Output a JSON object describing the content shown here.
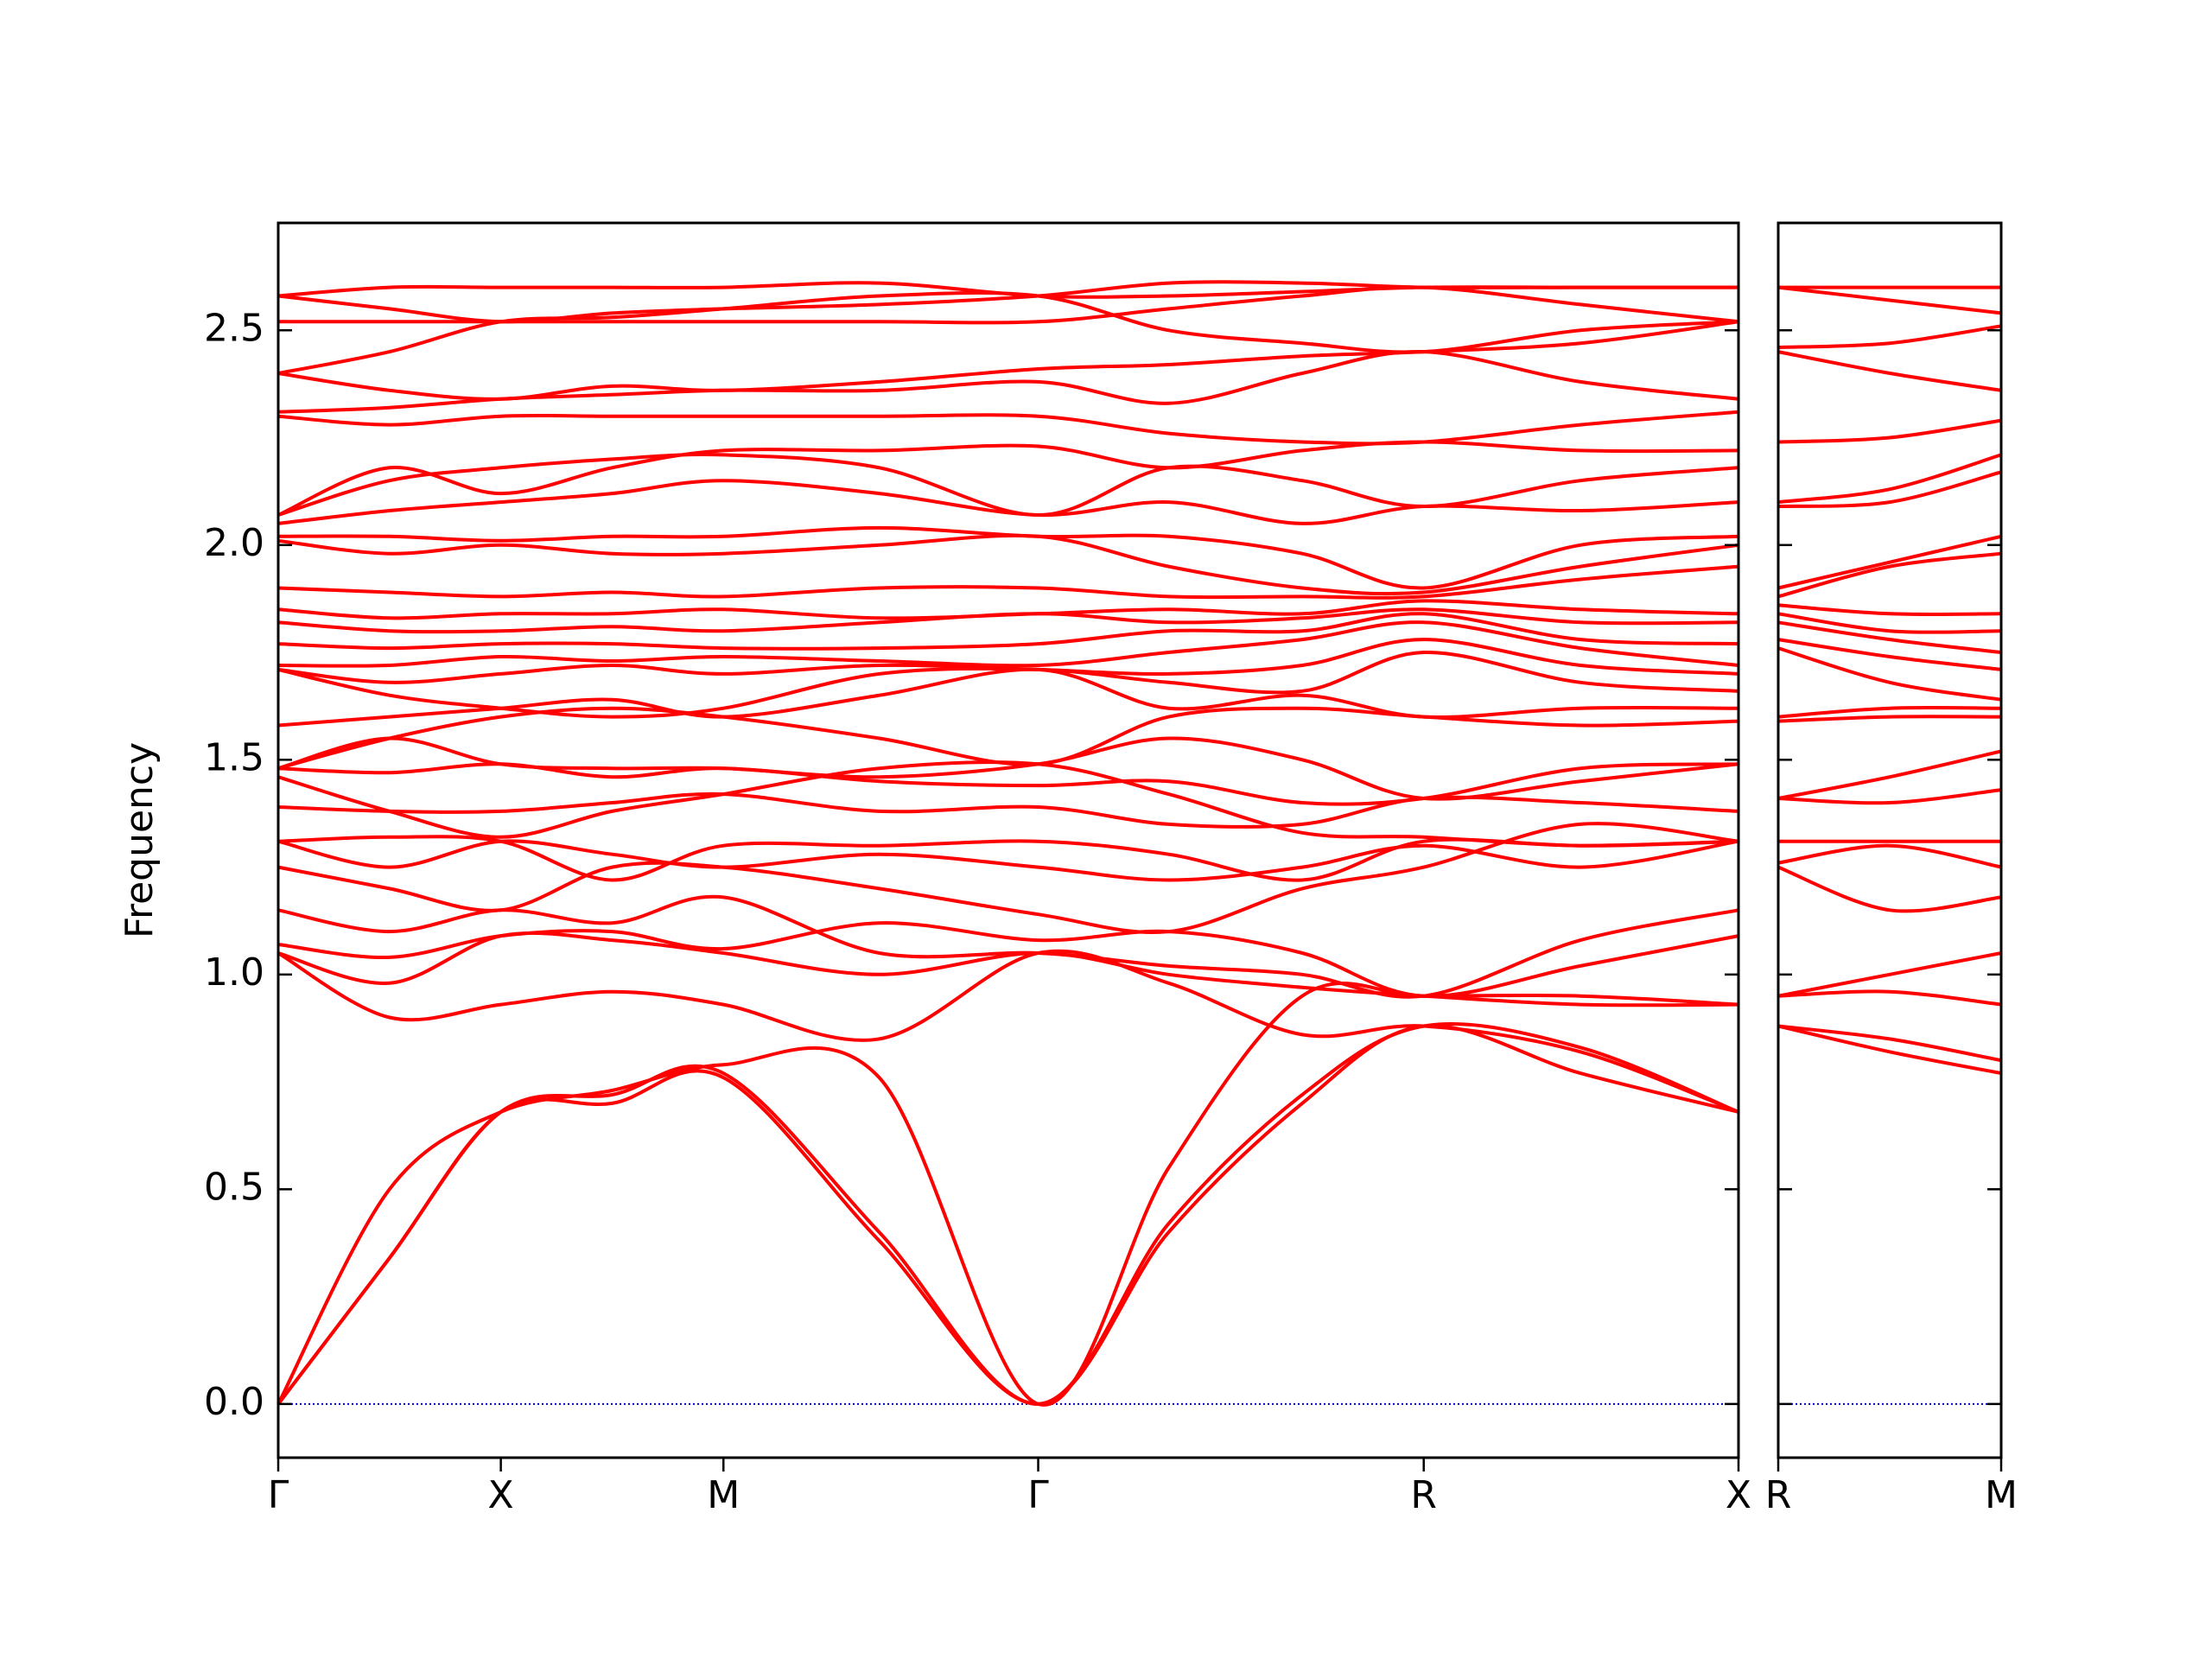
{
  "chart_data": [
    {
      "type": "line",
      "ylabel": "Frequency",
      "color": "#ff0000",
      "hline": 0,
      "hline_color": "#0000cc",
      "xlim": [
        0,
        6.56
      ],
      "ylim": [
        -0.125,
        2.75
      ],
      "xticks": [
        {
          "value": 0,
          "label": "Γ"
        },
        {
          "value": 1,
          "label": "X"
        },
        {
          "value": 2,
          "label": "M"
        },
        {
          "value": 3.414,
          "label": "Γ"
        },
        {
          "value": 5.146,
          "label": "R"
        },
        {
          "value": 6.56,
          "label": "X"
        }
      ],
      "yticks": [
        {
          "value": 0,
          "label": "0.0"
        },
        0.5,
        {
          "value": 1,
          "label": "1.0"
        },
        1.5,
        {
          "value": 2,
          "label": "2.0"
        },
        2.5
      ],
      "x": [
        0,
        0.5,
        1,
        1.5,
        2,
        2.7,
        3.414,
        4.0,
        4.6,
        5.146,
        5.85,
        6.56
      ],
      "series": [
        {
          "values": [
            0,
            0.34,
            0.68,
            0.7,
            0.76,
            0.38,
            0,
            0.4,
            0.7,
            0.88,
            0.77,
            0.68
          ]
        },
        {
          "values": [
            0,
            0.34,
            0.68,
            0.72,
            0.77,
            0.4,
            0,
            0.42,
            0.72,
            0.88,
            0.83,
            0.68
          ]
        },
        {
          "values": [
            0,
            0.5,
            0.68,
            0.73,
            0.79,
            0.76,
            0,
            0.55,
            0.95,
            0.95,
            0.95,
            0.93
          ]
        },
        {
          "values": [
            1.05,
            0.9,
            0.93,
            0.96,
            0.93,
            0.85,
            1.05,
            0.98,
            0.86,
            0.88,
            0.82,
            0.68
          ]
        },
        {
          "values": [
            1.05,
            0.98,
            1.09,
            1.08,
            1.05,
            1.0,
            1.05,
            1.0,
            0.97,
            0.95,
            0.93,
            0.93
          ]
        },
        {
          "values": [
            1.07,
            1.04,
            1.09,
            1.1,
            1.06,
            1.12,
            1.08,
            1.1,
            1.05,
            0.95,
            1.02,
            1.09
          ]
        },
        {
          "values": [
            1.15,
            1.1,
            1.15,
            1.12,
            1.18,
            1.05,
            1.05,
            1.02,
            1.0,
            0.95,
            1.08,
            1.15
          ]
        },
        {
          "values": [
            1.25,
            1.2,
            1.15,
            1.25,
            1.25,
            1.2,
            1.14,
            1.1,
            1.2,
            1.25,
            1.35,
            1.31
          ]
        },
        {
          "values": [
            1.31,
            1.25,
            1.31,
            1.28,
            1.25,
            1.28,
            1.25,
            1.22,
            1.25,
            1.3,
            1.25,
            1.31
          ]
        },
        {
          "values": [
            1.31,
            1.32,
            1.31,
            1.22,
            1.3,
            1.3,
            1.31,
            1.28,
            1.22,
            1.31,
            1.3,
            1.31
          ]
        },
        {
          "values": [
            1.39,
            1.38,
            1.38,
            1.4,
            1.42,
            1.38,
            1.39,
            1.35,
            1.35,
            1.41,
            1.4,
            1.38
          ]
        },
        {
          "values": [
            1.46,
            1.38,
            1.32,
            1.38,
            1.42,
            1.48,
            1.49,
            1.42,
            1.33,
            1.32,
            1.3,
            1.31
          ]
        },
        {
          "values": [
            1.48,
            1.47,
            1.49,
            1.46,
            1.48,
            1.45,
            1.44,
            1.45,
            1.4,
            1.41,
            1.48,
            1.49
          ]
        },
        {
          "values": [
            1.48,
            1.55,
            1.49,
            1.48,
            1.48,
            1.46,
            1.49,
            1.55,
            1.5,
            1.41,
            1.45,
            1.49
          ]
        },
        {
          "values": [
            1.48,
            1.55,
            1.6,
            1.62,
            1.6,
            1.55,
            1.49,
            1.6,
            1.62,
            1.6,
            1.58,
            1.59
          ]
        },
        {
          "values": [
            1.58,
            1.6,
            1.62,
            1.64,
            1.6,
            1.65,
            1.71,
            1.62,
            1.65,
            1.6,
            1.62,
            1.62
          ]
        },
        {
          "values": [
            1.71,
            1.65,
            1.62,
            1.6,
            1.62,
            1.7,
            1.71,
            1.68,
            1.66,
            1.75,
            1.68,
            1.66
          ]
        },
        {
          "values": [
            1.71,
            1.68,
            1.7,
            1.72,
            1.7,
            1.72,
            1.71,
            1.7,
            1.72,
            1.78,
            1.72,
            1.7
          ]
        },
        {
          "values": [
            1.72,
            1.72,
            1.74,
            1.73,
            1.74,
            1.73,
            1.72,
            1.75,
            1.78,
            1.82,
            1.76,
            1.72
          ]
        },
        {
          "values": [
            1.77,
            1.76,
            1.77,
            1.77,
            1.76,
            1.76,
            1.77,
            1.8,
            1.8,
            1.84,
            1.78,
            1.77
          ]
        },
        {
          "values": [
            1.82,
            1.8,
            1.8,
            1.81,
            1.8,
            1.82,
            1.84,
            1.82,
            1.83,
            1.85,
            1.82,
            1.82
          ]
        },
        {
          "values": [
            1.85,
            1.83,
            1.84,
            1.84,
            1.85,
            1.83,
            1.84,
            1.85,
            1.84,
            1.87,
            1.85,
            1.84
          ]
        },
        {
          "values": [
            1.9,
            1.89,
            1.88,
            1.89,
            1.88,
            1.9,
            1.9,
            1.88,
            1.88,
            1.88,
            1.92,
            1.95
          ]
        },
        {
          "values": [
            2.01,
            1.98,
            2.0,
            1.98,
            1.98,
            2.0,
            2.02,
            1.95,
            1.9,
            1.89,
            1.95,
            2.0
          ]
        },
        {
          "values": [
            2.02,
            2.02,
            2.01,
            2.02,
            2.02,
            2.04,
            2.02,
            2.02,
            1.98,
            1.9,
            2.0,
            2.02
          ]
        },
        {
          "values": [
            2.05,
            2.08,
            2.1,
            2.12,
            2.15,
            2.12,
            2.07,
            2.1,
            2.05,
            2.09,
            2.08,
            2.1
          ]
        },
        {
          "values": [
            2.07,
            2.15,
            2.18,
            2.2,
            2.21,
            2.18,
            2.07,
            2.18,
            2.15,
            2.09,
            2.15,
            2.18
          ]
        },
        {
          "values": [
            2.07,
            2.18,
            2.12,
            2.18,
            2.22,
            2.22,
            2.23,
            2.18,
            2.22,
            2.24,
            2.22,
            2.22
          ]
        },
        {
          "values": [
            2.3,
            2.28,
            2.3,
            2.3,
            2.3,
            2.3,
            2.3,
            2.26,
            2.24,
            2.24,
            2.28,
            2.31
          ]
        },
        {
          "values": [
            2.31,
            2.32,
            2.34,
            2.35,
            2.36,
            2.36,
            2.38,
            2.33,
            2.4,
            2.45,
            2.38,
            2.34
          ]
        },
        {
          "values": [
            2.4,
            2.36,
            2.34,
            2.37,
            2.36,
            2.38,
            2.41,
            2.42,
            2.44,
            2.45,
            2.47,
            2.52
          ]
        },
        {
          "values": [
            2.52,
            2.52,
            2.52,
            2.52,
            2.52,
            2.52,
            2.52,
            2.55,
            2.58,
            2.6,
            2.56,
            2.52
          ]
        },
        {
          "values": [
            2.58,
            2.55,
            2.52,
            2.54,
            2.55,
            2.56,
            2.58,
            2.61,
            2.61,
            2.6,
            2.6,
            2.6
          ]
        },
        {
          "values": [
            2.58,
            2.6,
            2.6,
            2.6,
            2.6,
            2.61,
            2.58,
            2.58,
            2.59,
            2.6,
            2.6,
            2.6
          ]
        },
        {
          "values": [
            2.4,
            2.45,
            2.52,
            2.53,
            2.55,
            2.58,
            2.58,
            2.5,
            2.47,
            2.45,
            2.5,
            2.52
          ]
        }
      ]
    },
    {
      "type": "line",
      "color": "#ff0000",
      "hline": 0,
      "hline_color": "#0000cc",
      "ytick_labels": false,
      "xlim": [
        6.56,
        7.56
      ],
      "ylim": [
        -0.125,
        2.75
      ],
      "xticks": [
        {
          "value": 6.56,
          "label": "R"
        },
        {
          "value": 7.56,
          "label": "M"
        }
      ],
      "yticks": [
        0,
        0.5,
        1,
        1.5,
        2,
        2.5
      ],
      "x": [
        6.56,
        7.06,
        7.56
      ],
      "series": [
        {
          "values": [
            0.88,
            0.82,
            0.77
          ]
        },
        {
          "values": [
            0.88,
            0.85,
            0.8
          ]
        },
        {
          "values": [
            0.95,
            0.96,
            0.93
          ]
        },
        {
          "values": [
            0.95,
            1.0,
            1.05
          ]
        },
        {
          "values": [
            1.25,
            1.15,
            1.18
          ]
        },
        {
          "values": [
            1.26,
            1.3,
            1.25
          ]
        },
        {
          "values": [
            1.31,
            1.31,
            1.31
          ]
        },
        {
          "values": [
            1.41,
            1.4,
            1.43
          ]
        },
        {
          "values": [
            1.41,
            1.46,
            1.52
          ]
        },
        {
          "values": [
            1.59,
            1.6,
            1.6
          ]
        },
        {
          "values": [
            1.6,
            1.62,
            1.62
          ]
        },
        {
          "values": [
            1.76,
            1.68,
            1.64
          ]
        },
        {
          "values": [
            1.78,
            1.74,
            1.71
          ]
        },
        {
          "values": [
            1.82,
            1.78,
            1.75
          ]
        },
        {
          "values": [
            1.84,
            1.8,
            1.8
          ]
        },
        {
          "values": [
            1.86,
            1.84,
            1.84
          ]
        },
        {
          "values": [
            1.88,
            1.95,
            1.98
          ]
        },
        {
          "values": [
            1.9,
            1.96,
            2.02
          ]
        },
        {
          "values": [
            2.09,
            2.1,
            2.17
          ]
        },
        {
          "values": [
            2.1,
            2.13,
            2.21
          ]
        },
        {
          "values": [
            2.24,
            2.25,
            2.29
          ]
        },
        {
          "values": [
            2.45,
            2.4,
            2.36
          ]
        },
        {
          "values": [
            2.46,
            2.47,
            2.51
          ]
        },
        {
          "values": [
            2.6,
            2.57,
            2.54
          ]
        },
        {
          "values": [
            2.6,
            2.6,
            2.6
          ]
        }
      ]
    }
  ]
}
